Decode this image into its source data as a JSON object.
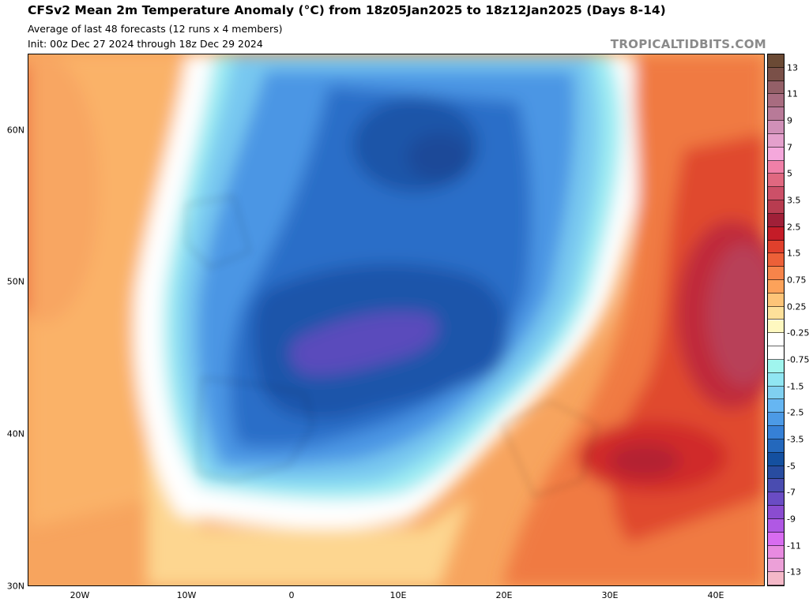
{
  "header": {
    "title": "CFSv2 Mean 2m Temperature Anomaly (°C) from 18z05Jan2025 to 18z12Jan2025 (Days 8-14)",
    "subtitle": "Average of last 48 forecasts (12 runs x 4 members)",
    "init": "Init: 00z Dec 27 2024 through 18z Dec 29 2024",
    "brand": "TROPICALTIDBITS.COM"
  },
  "axes": {
    "lat_labels": [
      "60N",
      "50N",
      "40N",
      "30N"
    ],
    "lon_labels": [
      "20W",
      "10W",
      "0",
      "10E",
      "20E",
      "30E",
      "40E"
    ]
  },
  "colorbar": {
    "labels": [
      "13",
      "11",
      "9",
      "7",
      "5",
      "3.5",
      "2.5",
      "1.5",
      "0.75",
      "0.25",
      "-0.25",
      "-0.75",
      "-1.5",
      "-2.5",
      "-3.5",
      "-5",
      "-7",
      "-9",
      "-11",
      "-13"
    ],
    "colors": [
      "#6b4a35",
      "#7a5048",
      "#946068",
      "#a86c80",
      "#b87a98",
      "#d090b8",
      "#e4a0cc",
      "#f5a8dc",
      "#f080a8",
      "#e06880",
      "#cc5068",
      "#b83c50",
      "#a02038",
      "#c41c28",
      "#e0402c",
      "#ec6038",
      "#f6844a",
      "#fca25a",
      "#fdc478",
      "#fde09a",
      "#fef8c0",
      "#ffffff",
      "#ffffff",
      "#a0f5ee",
      "#90e6f2",
      "#80d0f0",
      "#66b6f2",
      "#4c9ae6",
      "#3680d6",
      "#2468bc",
      "#1450a0",
      "#284ca0",
      "#4a4cb0",
      "#6a4cc4",
      "#8a4cd0",
      "#b058e4",
      "#d86cf0",
      "#e88ae0",
      "#eca0d8",
      "#f4b8c8"
    ]
  }
}
